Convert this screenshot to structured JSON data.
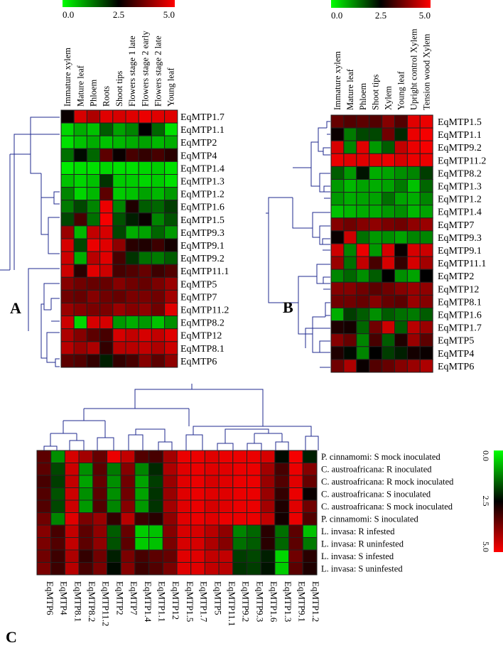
{
  "colors": {
    "low": "#00ff00",
    "mid": "#000000",
    "high": "#ff0000",
    "line": "#1f2a8f",
    "grid": "#222222"
  },
  "colorbar_ticks": [
    "0.0",
    "2.5",
    "5.0"
  ],
  "chart_data": [
    {
      "id": "A",
      "type": "heatmap",
      "panel_label": "A",
      "columns": [
        "Immature xylem",
        "Mature leaf",
        "Phloem",
        "Roots",
        "Shoot tips",
        "Flowers stage 1 late",
        "Flowers stage 2 early",
        "Flowers stage 2 late",
        "Young leaf"
      ],
      "rows": [
        "EqMTP1.7",
        "EqMTP1.1",
        "EqMTP2",
        "EqMTP4",
        "EqMTP1.4",
        "EqMTP1.3",
        "EqMTP1.2",
        "EqMTP1.6",
        "EqMTP1.5",
        "EqMTP9.3",
        "EqMTP9.1",
        "EqMTP9.2",
        "EqMTP11.1",
        "EqMTP5",
        "EqMTP7",
        "EqMTP11.2",
        "EqMTP8.2",
        "EqMTP12",
        "EqMTP8.1",
        "EqMTP6"
      ],
      "values": [
        [
          2.6,
          4.6,
          4.2,
          4.7,
          4.6,
          4.7,
          4.8,
          4.7,
          4.7
        ],
        [
          0.4,
          0.8,
          0.6,
          1.6,
          0.9,
          1.2,
          2.5,
          1.5,
          0.3
        ],
        [
          0.3,
          0.6,
          0.8,
          0.6,
          0.7,
          0.8,
          0.9,
          0.7,
          0.8
        ],
        [
          1.4,
          2.4,
          1.5,
          3.4,
          2.6,
          3.2,
          3.0,
          3.2,
          2.9
        ],
        [
          0.2,
          0.3,
          0.3,
          0.4,
          0.3,
          0.3,
          0.4,
          0.5,
          0.3
        ],
        [
          0.6,
          0.4,
          0.6,
          2.0,
          0.5,
          0.5,
          0.4,
          0.5,
          0.3
        ],
        [
          1.2,
          0.4,
          0.7,
          3.4,
          0.5,
          0.6,
          0.9,
          0.7,
          1.0
        ],
        [
          1.3,
          1.8,
          1.2,
          4.8,
          1.2,
          2.8,
          1.6,
          1.5,
          1.9
        ],
        [
          1.8,
          3.2,
          1.4,
          4.9,
          1.7,
          2.2,
          2.6,
          1.2,
          1.7
        ],
        [
          4.0,
          0.7,
          4.4,
          4.6,
          1.8,
          0.8,
          0.9,
          1.5,
          1.0
        ],
        [
          4.6,
          1.8,
          4.8,
          4.7,
          3.9,
          2.9,
          2.8,
          3.1,
          2.7
        ],
        [
          4.5,
          0.8,
          4.3,
          4.7,
          3.2,
          2.0,
          1.4,
          1.3,
          1.6
        ],
        [
          4.5,
          2.9,
          4.7,
          4.5,
          3.2,
          3.3,
          3.5,
          3.1,
          3.3
        ],
        [
          3.8,
          3.6,
          3.5,
          3.5,
          3.8,
          3.6,
          3.5,
          3.7,
          4.0
        ],
        [
          3.6,
          3.5,
          3.8,
          3.6,
          3.5,
          3.7,
          3.7,
          3.6,
          4.1
        ],
        [
          4.0,
          3.8,
          3.7,
          3.7,
          4.0,
          3.8,
          3.9,
          3.6,
          4.7
        ],
        [
          4.5,
          0.4,
          4.6,
          4.6,
          1.0,
          0.8,
          1.0,
          0.6,
          1.1
        ],
        [
          4.2,
          3.8,
          3.4,
          3.2,
          4.6,
          4.4,
          4.6,
          4.4,
          4.7
        ],
        [
          4.3,
          4.0,
          4.2,
          3.0,
          4.3,
          4.3,
          4.4,
          4.2,
          4.5
        ],
        [
          3.4,
          3.3,
          3.0,
          2.2,
          3.0,
          3.2,
          3.8,
          3.4,
          3.9
        ]
      ]
    },
    {
      "id": "B",
      "type": "heatmap",
      "panel_label": "B",
      "columns": [
        "Immature xylem",
        "Mature leaf",
        "Phloem",
        "Shoot tips",
        "Xylem",
        "Young leaf",
        "Upright control Xylem",
        "Tension wood Xylem"
      ],
      "rows": [
        "EqMTP1.5",
        "EqMTP1.1",
        "EqMTP9.2",
        "EqMTP11.2",
        "EqMTP8.2",
        "EqMTP1.3",
        "EqMTP1.2",
        "EqMTP1.4",
        "EqMTP7",
        "EqMTP9.3",
        "EqMTP9.1",
        "EqMTP11.1",
        "EqMTP2",
        "EqMTP12",
        "EqMTP8.1",
        "EqMTP1.6",
        "EqMTP1.7",
        "EqMTP5",
        "EqMTP4",
        "EqMTP6"
      ],
      "values": [
        [
          3.5,
          3.3,
          3.4,
          3.3,
          3.8,
          3.3,
          4.7,
          4.8
        ],
        [
          2.6,
          1.3,
          1.8,
          1.8,
          3.6,
          2.1,
          4.8,
          4.9
        ],
        [
          4.6,
          1.2,
          4.7,
          1.0,
          1.6,
          4.4,
          4.8,
          4.9
        ],
        [
          4.8,
          4.7,
          4.7,
          4.7,
          4.8,
          4.6,
          4.8,
          4.8
        ],
        [
          1.6,
          1.0,
          2.3,
          0.8,
          0.9,
          1.1,
          1.2,
          1.9
        ],
        [
          1.0,
          0.7,
          0.9,
          0.8,
          0.9,
          1.3,
          0.6,
          1.5
        ],
        [
          1.0,
          0.8,
          0.9,
          0.9,
          1.4,
          0.9,
          0.8,
          1.2
        ],
        [
          0.6,
          0.7,
          0.8,
          0.8,
          1.0,
          1.1,
          0.7,
          0.9
        ],
        [
          3.8,
          3.6,
          3.8,
          3.9,
          3.7,
          3.6,
          3.9,
          4.0
        ],
        [
          2.6,
          4.5,
          1.4,
          1.0,
          1.1,
          0.9,
          1.2,
          1.2
        ],
        [
          4.5,
          1.2,
          4.8,
          1.0,
          4.6,
          2.6,
          4.6,
          4.5
        ],
        [
          4.0,
          1.4,
          4.4,
          3.2,
          4.6,
          3.0,
          4.6,
          4.1
        ],
        [
          1.2,
          1.5,
          1.1,
          1.6,
          2.5,
          1.1,
          0.9,
          2.5
        ],
        [
          3.8,
          3.8,
          3.6,
          3.4,
          3.6,
          3.8,
          4.0,
          3.9
        ],
        [
          3.6,
          3.6,
          3.5,
          3.8,
          3.5,
          3.4,
          4.0,
          3.8
        ],
        [
          0.8,
          1.9,
          1.6,
          1.1,
          1.6,
          1.4,
          1.3,
          1.6
        ],
        [
          2.8,
          2.7,
          1.5,
          3.6,
          4.5,
          1.6,
          4.3,
          4.0
        ],
        [
          3.8,
          3.5,
          1.2,
          3.2,
          1.6,
          2.8,
          4.0,
          3.4
        ],
        [
          2.8,
          2.4,
          1.2,
          2.5,
          1.9,
          2.2,
          2.7,
          2.6
        ],
        [
          3.6,
          4.2,
          2.6,
          3.3,
          3.5,
          3.8,
          4.0,
          4.2
        ]
      ]
    },
    {
      "id": "C",
      "type": "heatmap",
      "panel_label": "C",
      "columns": [
        "EqMTP6",
        "EqMTP4",
        "EqMTP8.1",
        "EqMTP8.2",
        "EqMTP11.2",
        "EqMTP2",
        "EqMTP7",
        "EqMTP1.4",
        "EqMTP1.1",
        "EqMTP12",
        "EqMTP1.5",
        "EqMTP1.7",
        "EqMTP5",
        "EqMTP11.1",
        "EqMTP9.2",
        "EqMTP9.3",
        "EqMTP1.6",
        "EqMTP1.3",
        "EqMTP9.1",
        "EqMTP1.2"
      ],
      "rows": [
        "P. cinnamomi: S mock inoculated",
        "C. austroafricana: R inoculated",
        "C. austroafricana: R mock inoculated",
        "C. austroafricana: S inoculated",
        "C. austroafricana: S mock inoculated",
        "P. cinnamomi: S inoculated",
        "L. invasa: R infested",
        "L. invasa: R uninfested",
        "L. invasa: S infested",
        "L. invasa: S uninfested"
      ],
      "values": [
        [
          3.4,
          1.1,
          4.6,
          4.1,
          3.5,
          4.8,
          4.4,
          3.3,
          3.2,
          4.1,
          4.8,
          4.8,
          4.7,
          4.8,
          4.8,
          4.8,
          4.6,
          2.4,
          4.9,
          2.2
        ],
        [
          3.4,
          1.8,
          4.5,
          1.1,
          3.4,
          1.3,
          3.8,
          1.2,
          2.1,
          4.2,
          4.7,
          4.8,
          4.7,
          4.7,
          4.8,
          4.8,
          4.1,
          3.2,
          4.8,
          3.8
        ],
        [
          3.2,
          1.9,
          4.4,
          0.9,
          3.5,
          1.1,
          3.6,
          0.9,
          1.9,
          4.0,
          4.7,
          4.8,
          4.6,
          4.7,
          4.8,
          4.8,
          4.0,
          3.3,
          4.7,
          3.5
        ],
        [
          3.3,
          1.7,
          4.5,
          1.1,
          3.4,
          1.1,
          3.6,
          0.9,
          2.0,
          4.0,
          4.7,
          4.8,
          4.7,
          4.7,
          4.8,
          4.8,
          4.0,
          3.0,
          4.8,
          2.6
        ],
        [
          3.3,
          1.8,
          4.5,
          1.0,
          3.3,
          1.2,
          3.8,
          1.0,
          2.0,
          4.1,
          4.7,
          4.8,
          4.6,
          4.7,
          4.8,
          4.8,
          4.1,
          2.8,
          4.7,
          3.6
        ],
        [
          3.6,
          1.2,
          4.7,
          3.7,
          4.0,
          3.0,
          4.3,
          3.1,
          2.9,
          3.9,
          4.7,
          4.8,
          4.7,
          4.8,
          4.8,
          4.8,
          4.4,
          2.7,
          4.8,
          3.3
        ],
        [
          3.8,
          3.2,
          4.4,
          3.4,
          3.9,
          1.6,
          3.5,
          0.5,
          0.6,
          3.8,
          4.6,
          4.6,
          4.3,
          3.9,
          1.2,
          1.5,
          2.9,
          1.4,
          3.4,
          0.6
        ],
        [
          3.7,
          3.3,
          4.4,
          3.4,
          3.9,
          1.7,
          3.4,
          0.5,
          0.6,
          3.7,
          4.6,
          4.6,
          4.2,
          3.8,
          1.4,
          1.6,
          2.9,
          1.5,
          3.4,
          1.3
        ],
        [
          3.6,
          3.1,
          4.2,
          3.0,
          3.6,
          2.2,
          3.7,
          3.2,
          3.4,
          3.5,
          4.7,
          4.7,
          4.4,
          4.4,
          1.9,
          1.8,
          2.2,
          0.4,
          3.6,
          2.9
        ],
        [
          3.7,
          3.1,
          4.3,
          3.2,
          3.7,
          2.4,
          3.8,
          3.1,
          3.3,
          3.7,
          4.7,
          4.7,
          4.4,
          4.3,
          2.0,
          1.9,
          2.3,
          0.5,
          3.4,
          2.8
        ]
      ]
    }
  ]
}
